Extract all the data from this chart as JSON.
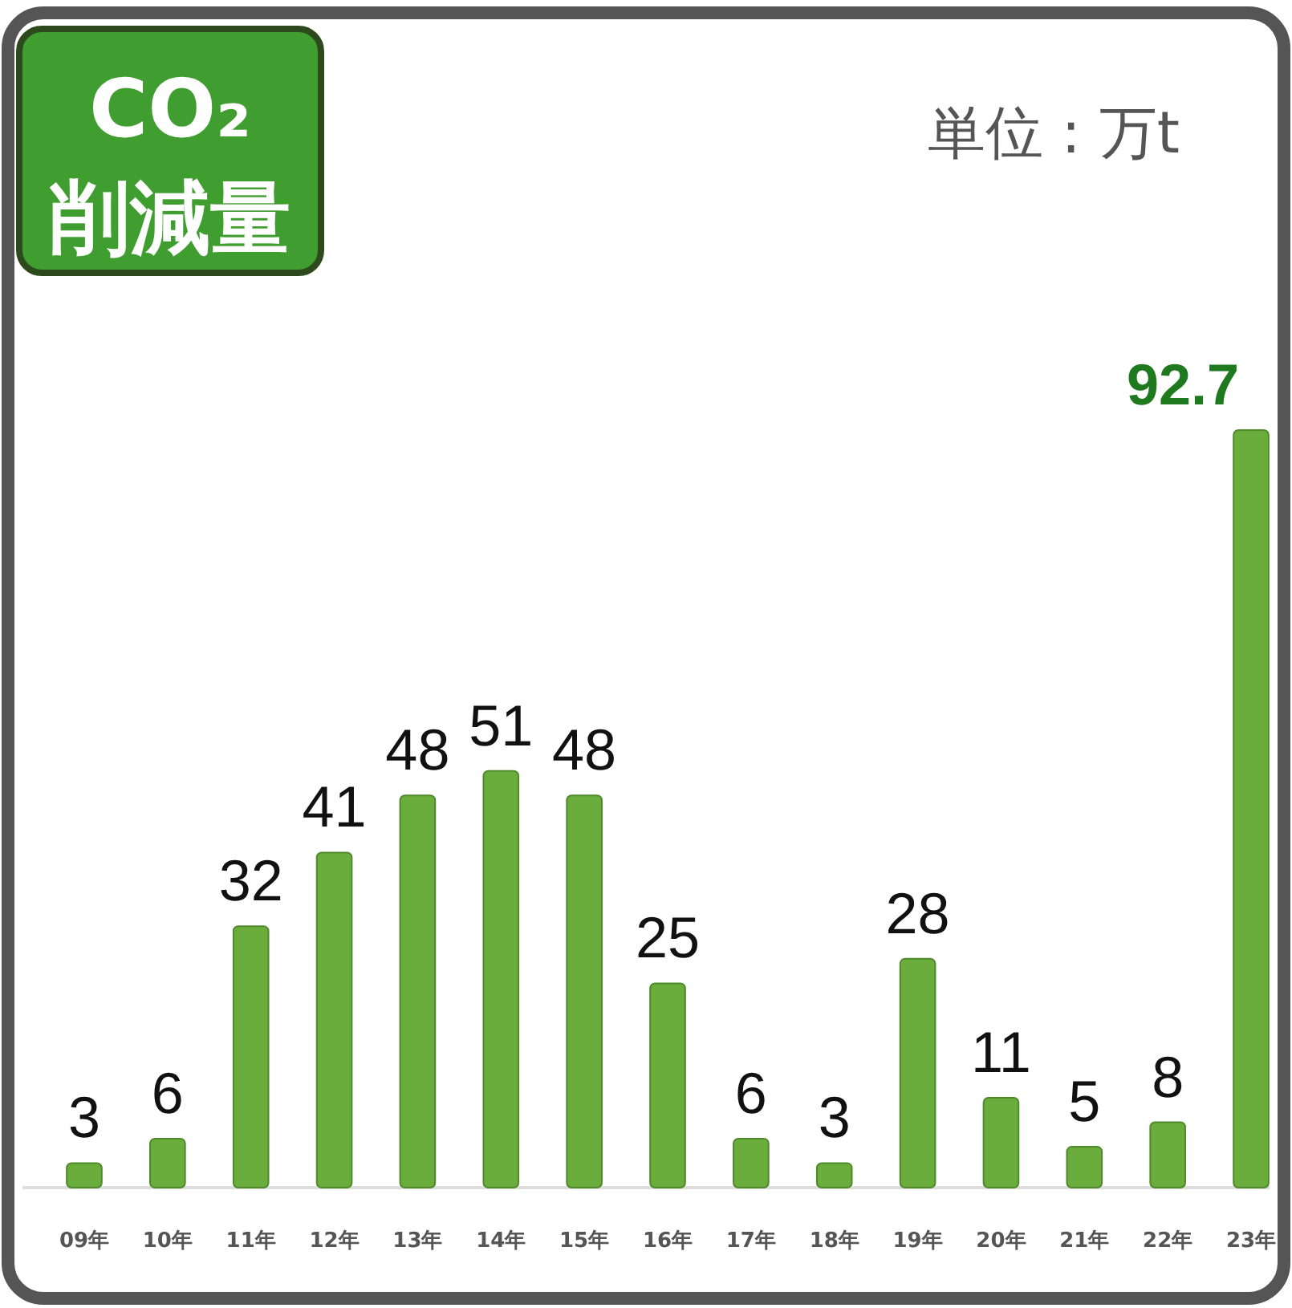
{
  "chart_data": {
    "type": "bar",
    "title": "CO₂\n削減量",
    "subtitle": "単位 : 万t",
    "categories": [
      "09年",
      "10年",
      "11年",
      "12年",
      "13年",
      "14年",
      "15年",
      "16年",
      "17年",
      "18年",
      "19年",
      "20年",
      "21年",
      "22年",
      "23年"
    ],
    "values": [
      3,
      6,
      32,
      41,
      48,
      51,
      48,
      25,
      6,
      3,
      28,
      11,
      5,
      8,
      92.7
    ],
    "color": "#6aad3d",
    "data_labels": true
  }
}
